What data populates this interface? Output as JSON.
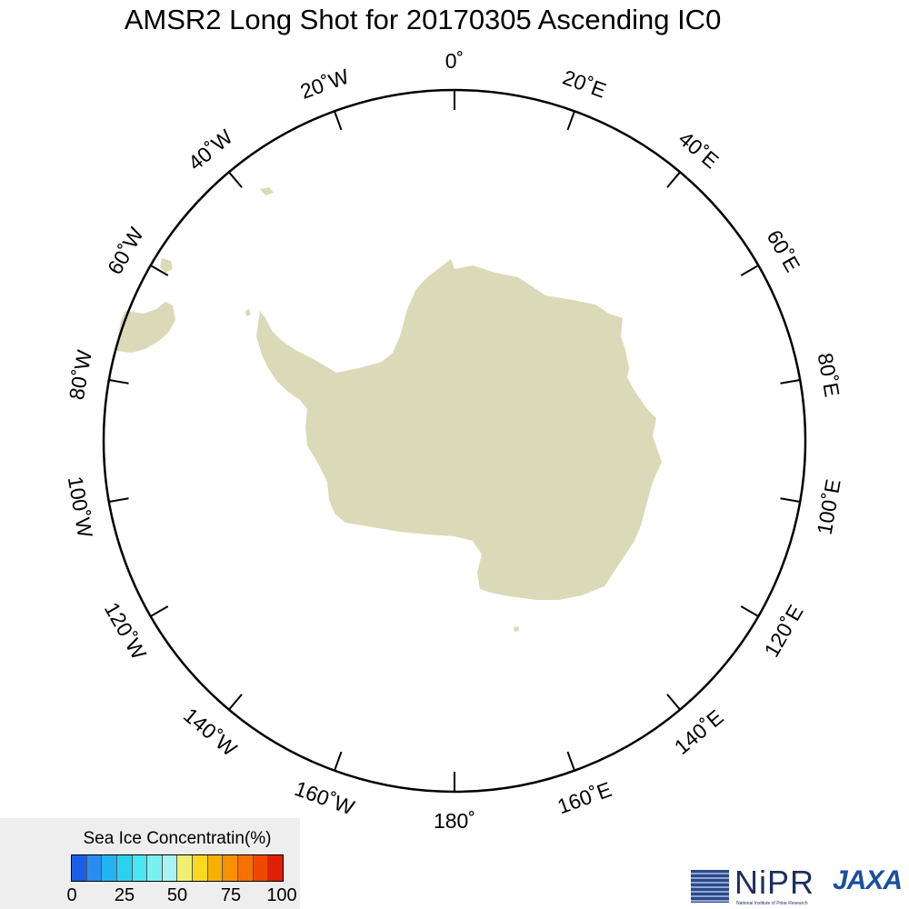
{
  "title": "AMSR2 Long Shot for 20170305 Ascending IC0",
  "map": {
    "projection": "south-polar-stereographic",
    "land_color": "#dadab8",
    "ocean_color": "#ffffff",
    "boundary_color": "#000000",
    "longitude_labels": [
      {
        "lon": 0,
        "text": "0˚"
      },
      {
        "lon": 20,
        "text": "20˚E"
      },
      {
        "lon": 40,
        "text": "40˚E"
      },
      {
        "lon": 60,
        "text": "60˚E"
      },
      {
        "lon": 80,
        "text": "80˚E"
      },
      {
        "lon": 100,
        "text": "100˚E"
      },
      {
        "lon": 120,
        "text": "120˚E"
      },
      {
        "lon": 140,
        "text": "140˚E"
      },
      {
        "lon": 160,
        "text": "160˚E"
      },
      {
        "lon": 180,
        "text": "180˚"
      },
      {
        "lon": -160,
        "text": "160˚W"
      },
      {
        "lon": -140,
        "text": "140˚W"
      },
      {
        "lon": -120,
        "text": "120˚W"
      },
      {
        "lon": -100,
        "text": "100˚W"
      },
      {
        "lon": -80,
        "text": "80˚W"
      },
      {
        "lon": -60,
        "text": "60˚W"
      },
      {
        "lon": -40,
        "text": "40˚W"
      },
      {
        "lon": -20,
        "text": "20˚W"
      }
    ]
  },
  "legend": {
    "title": "Sea Ice Concentratin(%)",
    "colors": [
      "#1a5fe6",
      "#2a8cf0",
      "#22b4f2",
      "#2ad2f0",
      "#4ae6f2",
      "#7af0f0",
      "#a8f4f0",
      "#f0f070",
      "#f8d820",
      "#f8b000",
      "#f89000",
      "#f87000",
      "#f04800",
      "#e02000"
    ],
    "ticks": [
      "0",
      "25",
      "50",
      "75",
      "100"
    ]
  },
  "logos": {
    "nipr": {
      "name": "NiPR",
      "subtitle": "National Institute of Polar Research",
      "color": "#1e2f5c"
    },
    "jaxa": {
      "name": "JAXA",
      "color": "#1a4fa0"
    }
  }
}
